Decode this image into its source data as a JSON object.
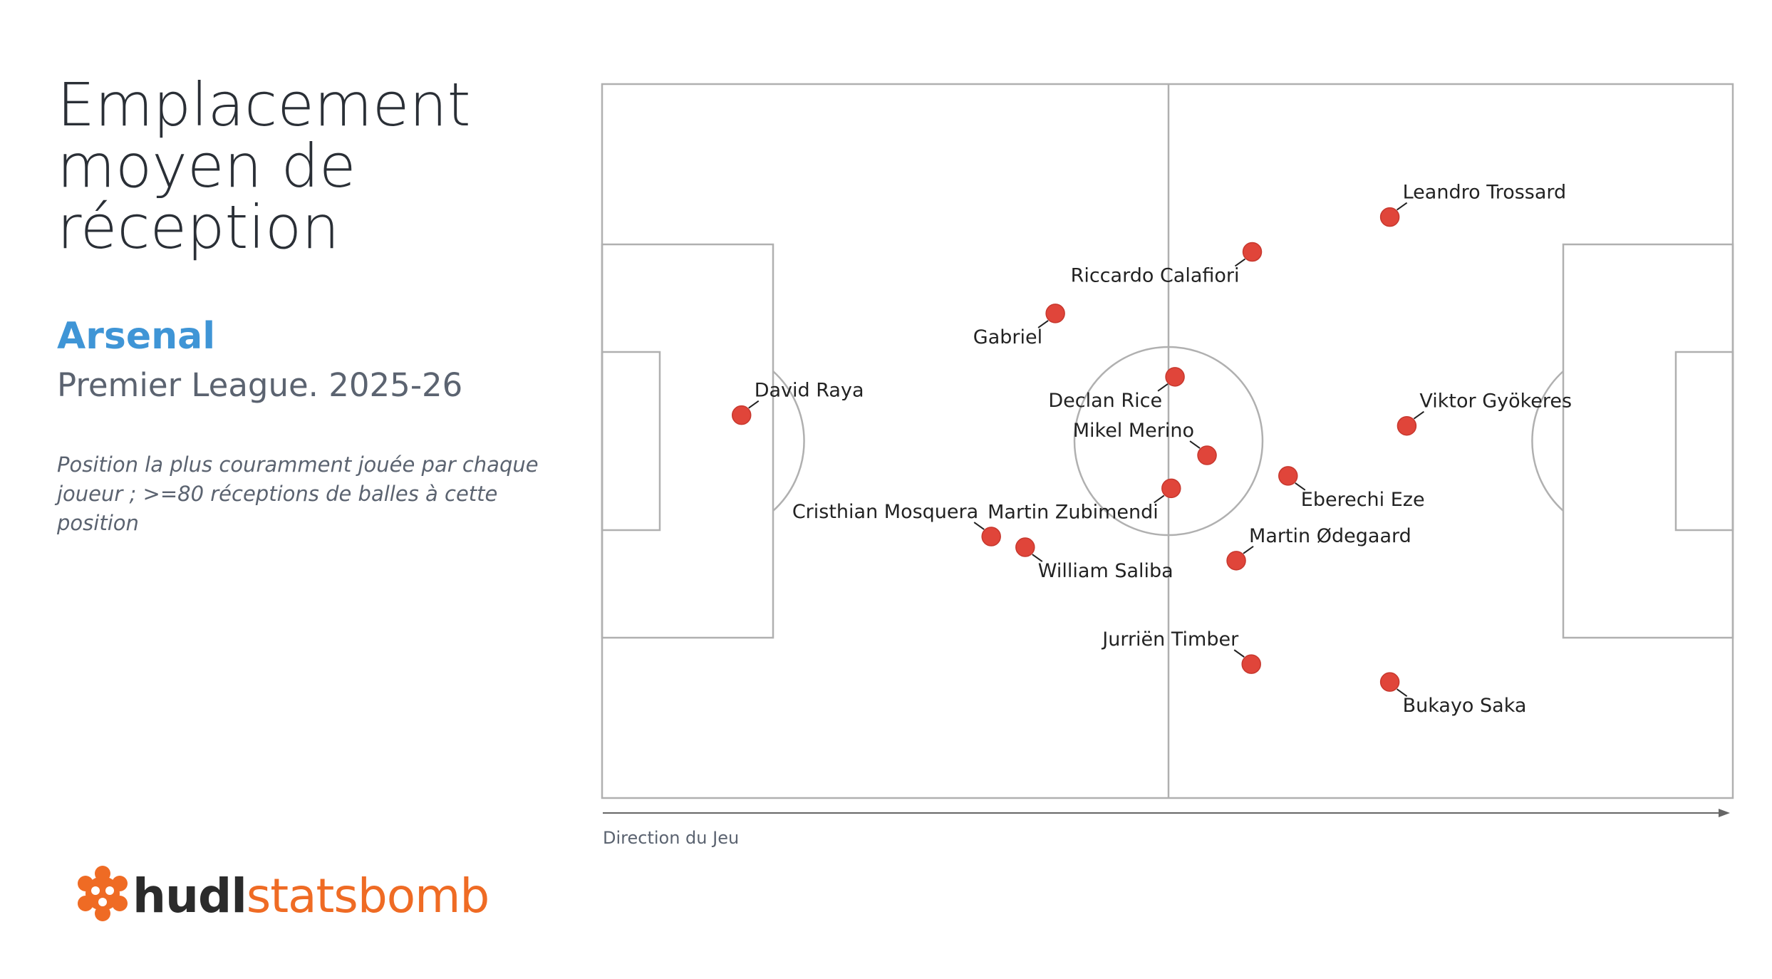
{
  "header": {
    "title_lines": [
      "Emplacement",
      "moyen de",
      "réception"
    ],
    "team": "Arsenal",
    "competition": "Premier League. 2025-26",
    "note_lines": [
      "Position la plus couramment jouée par chaque",
      "joueur ; >=80 réceptions de balles à cette position"
    ]
  },
  "pitch": {
    "direction_label": "Direction du Jeu"
  },
  "colors": {
    "marker": "#e0453a",
    "marker_stroke": "#c7382e",
    "pitch_lines": "#b0b0b0",
    "text": "#222222",
    "team": "#3f95d6",
    "logo_orange": "#ef6b24"
  },
  "logo": {
    "icon": "hudl-statsbomb-logo-icon",
    "part1": "hudl",
    "part2": "statsbomb"
  },
  "chart_data": {
    "type": "scatter",
    "x_unit": "pitch length, 0-120 (StatsBomb)",
    "y_unit": "pitch width, 0-80 (StatsBomb)",
    "xlim": [
      0,
      120
    ],
    "ylim": [
      0,
      80
    ],
    "grid": false,
    "players": [
      {
        "name": "David Raya",
        "x": 14.8,
        "y": 37.1,
        "label_side": "right-up"
      },
      {
        "name": "Gabriel",
        "x": 48.1,
        "y": 25.7,
        "label_side": "left-down"
      },
      {
        "name": "Cristhian Mosquera",
        "x": 41.3,
        "y": 50.7,
        "label_side": "left-up"
      },
      {
        "name": "William Saliba",
        "x": 44.9,
        "y": 51.9,
        "label_side": "right-down"
      },
      {
        "name": "Riccardo Calafiori",
        "x": 69.0,
        "y": 18.8,
        "label_side": "left-down"
      },
      {
        "name": "Jurriën Timber",
        "x": 68.9,
        "y": 65.0,
        "label_side": "left-up"
      },
      {
        "name": "Declan Rice",
        "x": 60.8,
        "y": 32.8,
        "label_side": "left-down"
      },
      {
        "name": "Mikel Merino",
        "x": 64.2,
        "y": 41.6,
        "label_side": "left-up"
      },
      {
        "name": "Martin Zubimendi",
        "x": 60.4,
        "y": 45.3,
        "label_side": "left-down"
      },
      {
        "name": "Martin Ødegaard",
        "x": 67.3,
        "y": 53.4,
        "label_side": "right-up"
      },
      {
        "name": "Eberechi Eze",
        "x": 72.8,
        "y": 43.9,
        "label_side": "right-down"
      },
      {
        "name": "Leandro Trossard",
        "x": 83.6,
        "y": 14.9,
        "label_side": "right-up"
      },
      {
        "name": "Viktor Gyökeres",
        "x": 85.4,
        "y": 38.3,
        "label_side": "right-up"
      },
      {
        "name": "Bukayo Saka",
        "x": 83.6,
        "y": 67.0,
        "label_side": "right-down"
      }
    ]
  }
}
